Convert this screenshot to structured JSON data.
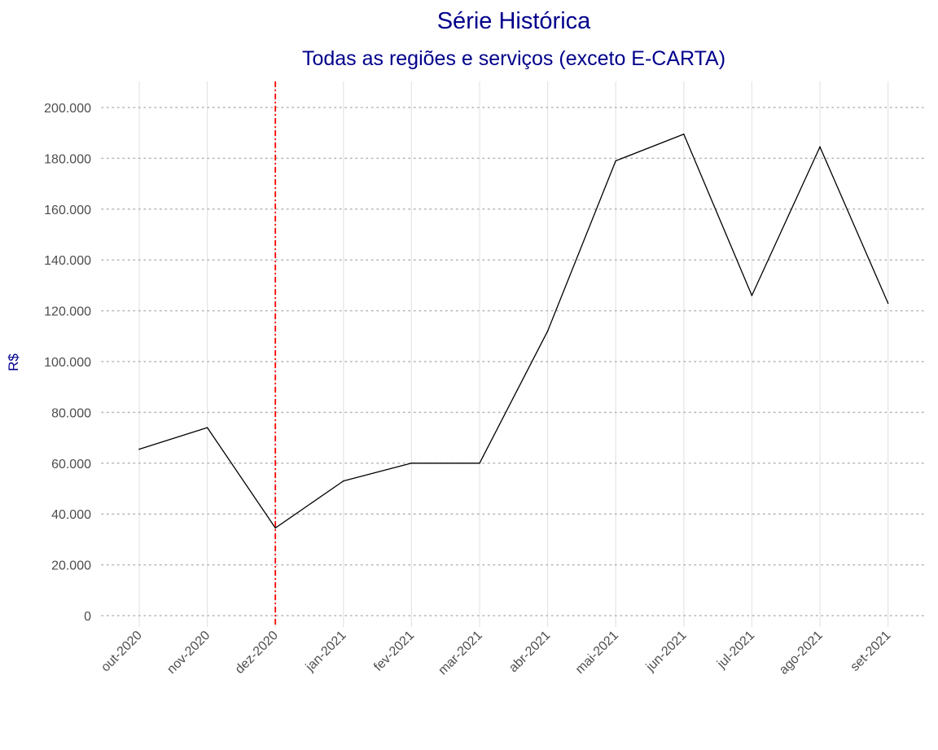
{
  "chart_data": {
    "type": "line",
    "title": "Série Histórica",
    "subtitle": "Todas as regiões e serviços (exceto E-CARTA)",
    "xlabel": "",
    "ylabel": "R$",
    "categories": [
      "out-2020",
      "nov-2020",
      "dez-2020",
      "jan-2021",
      "fev-2021",
      "mar-2021",
      "abr-2021",
      "mai-2021",
      "jun-2021",
      "jul-2021",
      "ago-2021",
      "set-2021"
    ],
    "series": [
      {
        "values": [
          65500,
          74000,
          34500,
          53000,
          60000,
          60000,
          112000,
          179000,
          189500,
          126000,
          184500,
          123000
        ]
      }
    ],
    "ylim": [
      0,
      200000
    ],
    "yticks": [
      0,
      20000,
      40000,
      60000,
      80000,
      100000,
      120000,
      140000,
      160000,
      180000,
      200000
    ],
    "ytick_labels": [
      "0",
      "20.000",
      "40.000",
      "60.000",
      "80.000",
      "100.000",
      "120.000",
      "140.000",
      "160.000",
      "180.000",
      "200.000"
    ],
    "vline": {
      "category_position": 2.0,
      "style": "dot-dash",
      "color": "#ff0000"
    },
    "grid": true,
    "line_color": "#000000"
  }
}
